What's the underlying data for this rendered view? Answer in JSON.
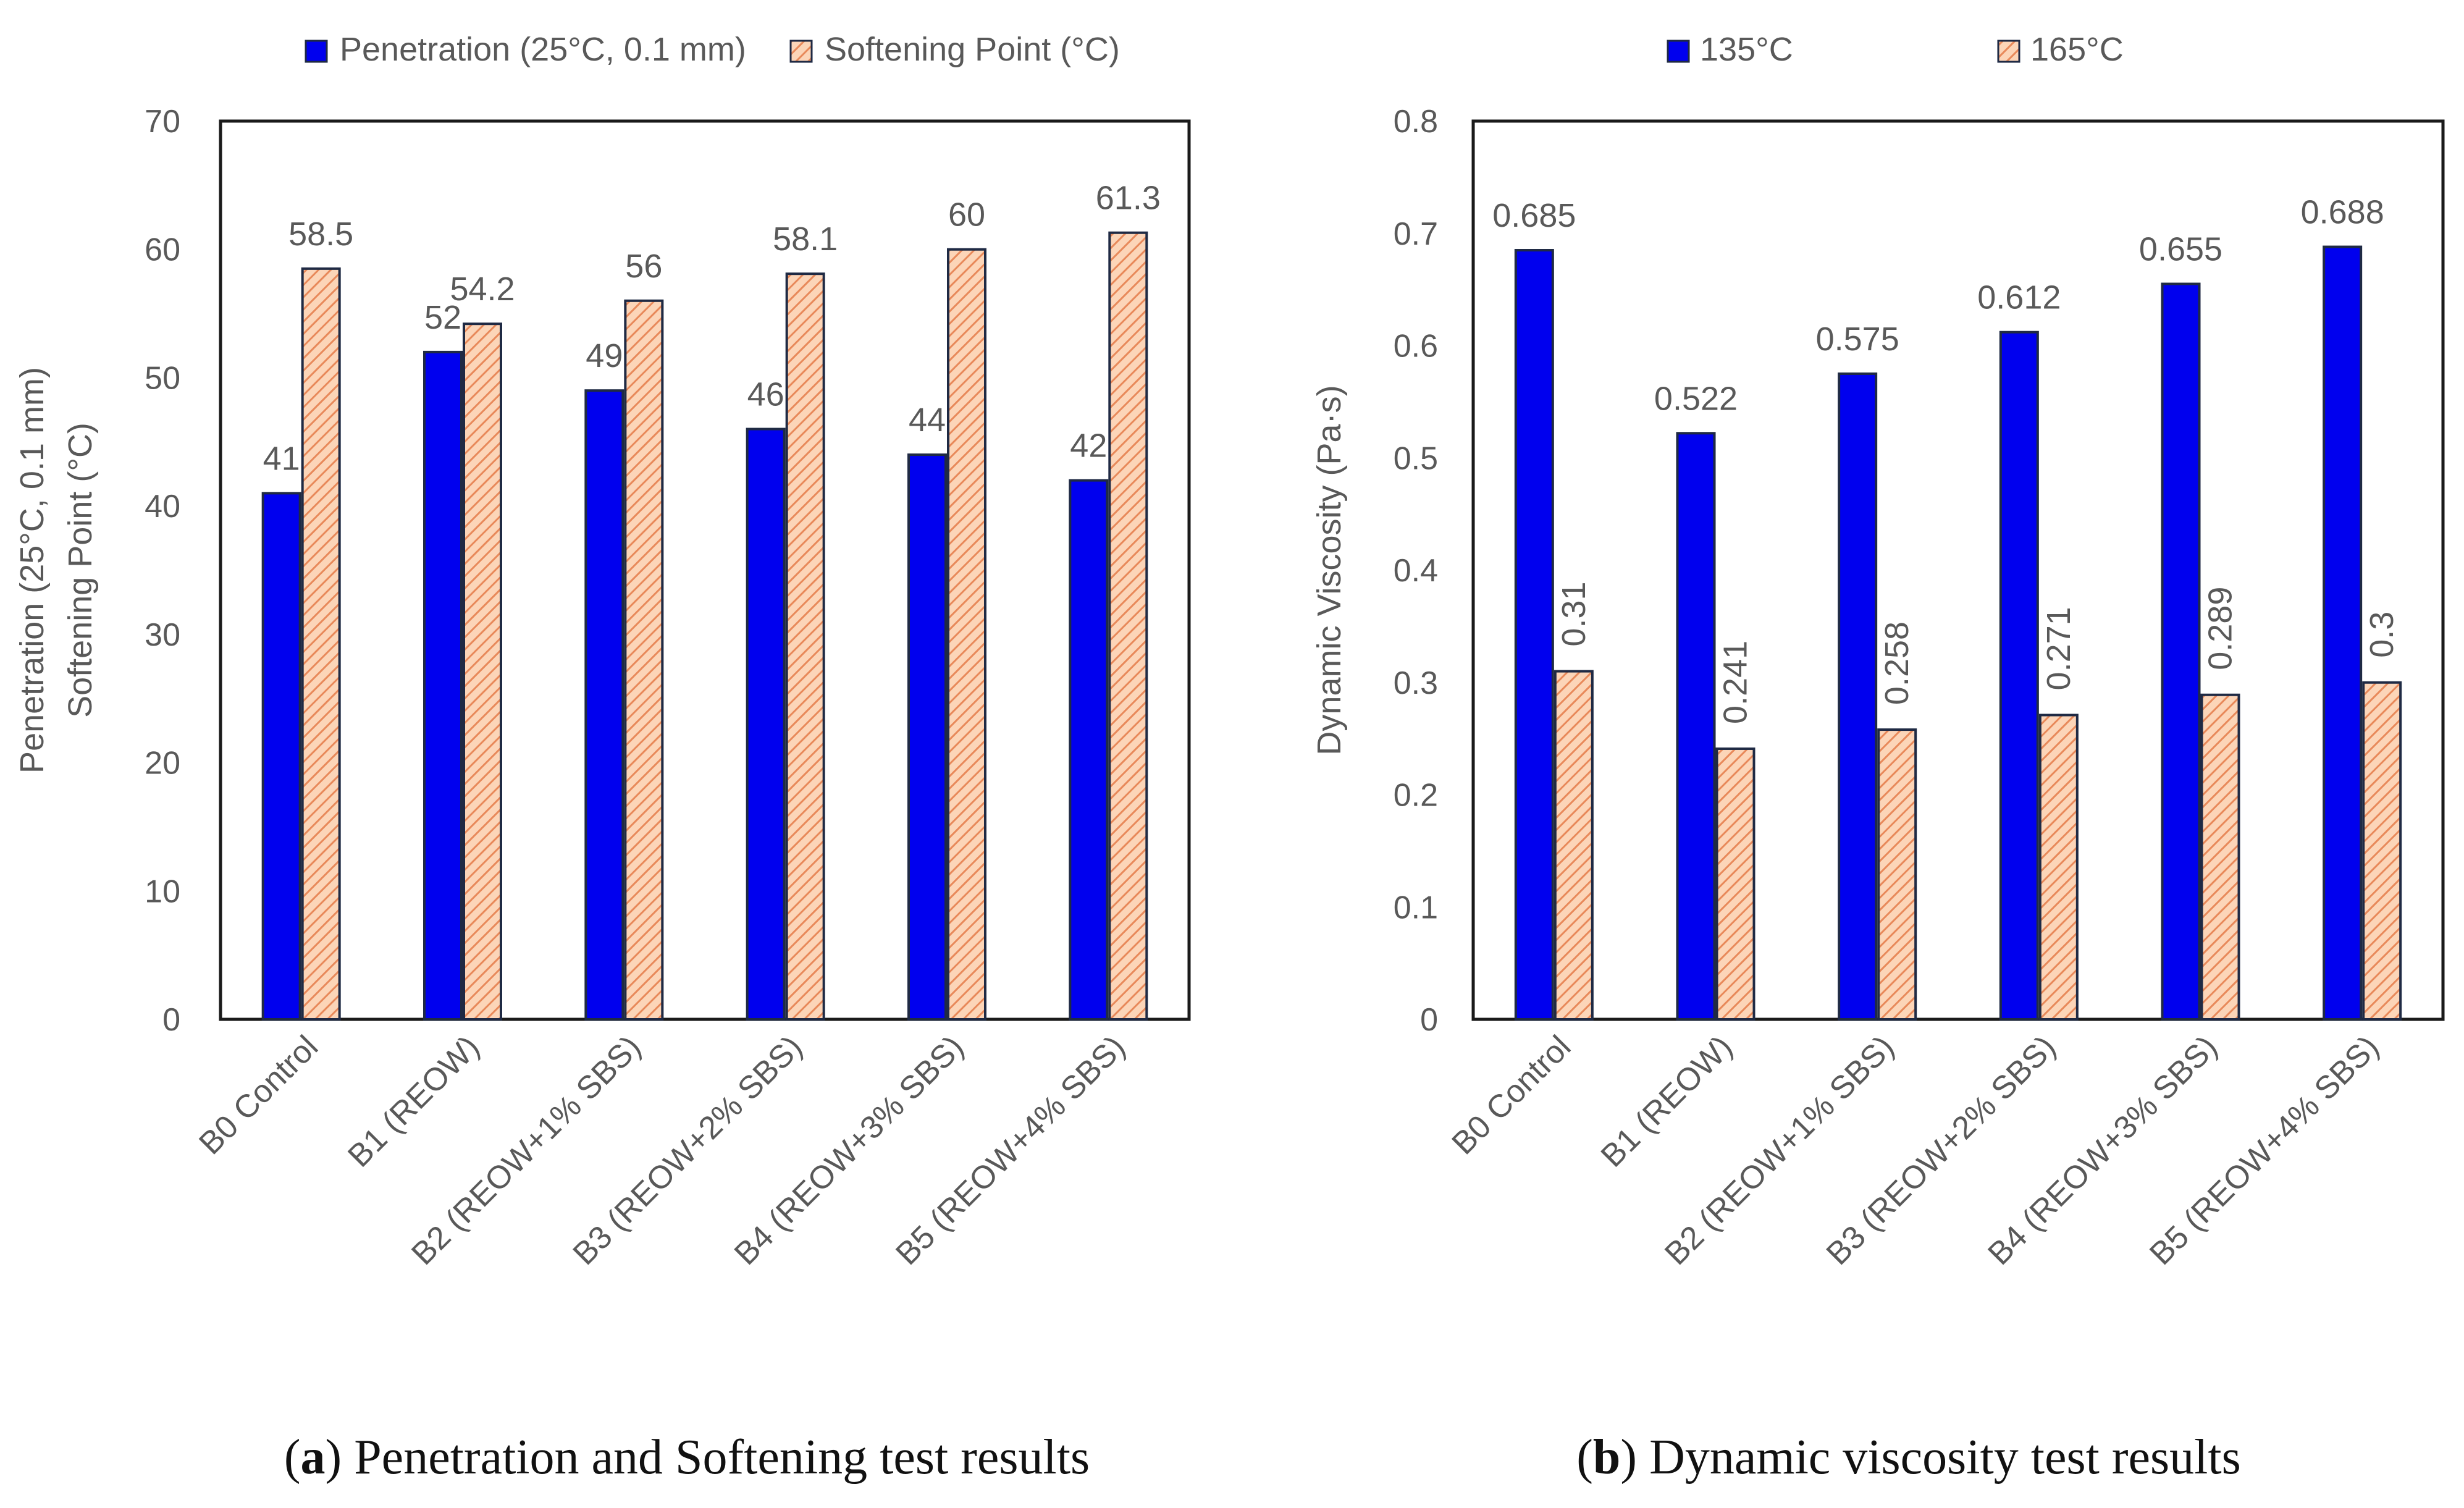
{
  "figure_captions": {
    "a": {
      "letter": "a",
      "text": "Penetration and Softening test results"
    },
    "b": {
      "letter": "b",
      "text": "Dynamic viscosity test results"
    }
  },
  "colors": {
    "blue": "#0000ee",
    "hatch_fill": "#fcd5b8",
    "hatch_line": "#e8895a",
    "bar_border": "#1f2a44",
    "axis": "#1a1a1a",
    "text": "#595959"
  },
  "chart_data": [
    {
      "type": "bar",
      "categories": [
        "B0 Control",
        "B1 (REOW)",
        "B2 (REOW+1% SBS)",
        "B3 (REOW+2% SBS)",
        "B4 (REOW+3% SBS)",
        "B5 (REOW+4% SBS)"
      ],
      "series": [
        {
          "name": "Penetration (25°C, 0.1 mm)",
          "values": [
            41,
            52,
            49,
            46,
            44,
            42
          ],
          "labels": [
            "41",
            "52",
            "49",
            "46",
            "44",
            "42"
          ],
          "style": "solid"
        },
        {
          "name": "Softening Point (°C)",
          "values": [
            58.5,
            54.2,
            56,
            58.1,
            60,
            61.3
          ],
          "labels": [
            "58.5",
            "54.2",
            "56",
            "58.1",
            "60",
            "61.3"
          ],
          "style": "hatched"
        }
      ],
      "ylabel_lines": [
        "Penetration (25°C, 0.1 mm)",
        "Softening Point (°C)"
      ],
      "ylim": [
        0,
        70
      ],
      "yticks": [
        "0",
        "10",
        "20",
        "30",
        "40",
        "50",
        "60",
        "70"
      ],
      "legend_position": "top",
      "label_rotation": 0
    },
    {
      "type": "bar",
      "categories": [
        "B0 Control",
        "B1 (REOW)",
        "B2 (REOW+1% SBS)",
        "B3 (REOW+2% SBS)",
        "B4 (REOW+3% SBS)",
        "B5 (REOW+4% SBS)"
      ],
      "series": [
        {
          "name": "135°C",
          "values": [
            0.685,
            0.522,
            0.575,
            0.612,
            0.655,
            0.688
          ],
          "labels": [
            "0.685",
            "0.522",
            "0.575",
            "0.612",
            "0.655",
            "0.688"
          ],
          "style": "solid"
        },
        {
          "name": "165°C",
          "values": [
            0.31,
            0.241,
            0.258,
            0.271,
            0.289,
            0.3
          ],
          "labels": [
            "0.31",
            "0.241",
            "0.258",
            "0.271",
            "0.289",
            "0.3"
          ],
          "style": "hatched"
        }
      ],
      "ylabel_lines": [
        "Dynamic Viscosity (Pa·s)"
      ],
      "ylim": [
        0,
        0.8
      ],
      "yticks": [
        "0",
        "0.1",
        "0.2",
        "0.3",
        "0.4",
        "0.5",
        "0.6",
        "0.7",
        "0.8"
      ],
      "legend_position": "top",
      "label_rotation": -90
    }
  ]
}
